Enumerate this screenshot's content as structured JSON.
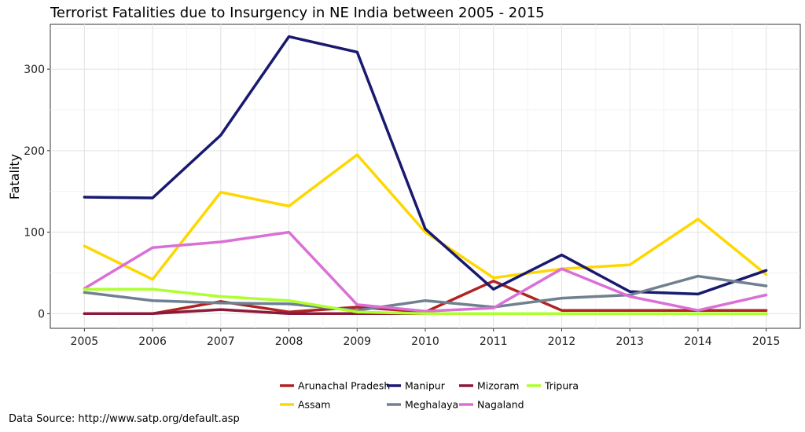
{
  "chart_data": {
    "type": "line",
    "title": "Terrorist Fatalities due to Insurgency in NE India between 2005 - 2015",
    "xlabel": "",
    "ylabel": "Fatality",
    "x": [
      2005,
      2006,
      2007,
      2008,
      2009,
      2010,
      2011,
      2012,
      2013,
      2014,
      2015
    ],
    "xlim": [
      2004.5,
      2015.5
    ],
    "ylim": [
      -18,
      355
    ],
    "y_ticks": [
      0,
      100,
      200,
      300
    ],
    "grid": true,
    "legend_position": "bottom",
    "series": [
      {
        "name": "Arunachal Pradesh",
        "color": "#b22222",
        "values": [
          0,
          0,
          15,
          2,
          8,
          2,
          40,
          4,
          4,
          4,
          4
        ]
      },
      {
        "name": "Assam",
        "color": "#ffd700",
        "values": [
          83,
          42,
          149,
          132,
          195,
          100,
          44,
          55,
          60,
          116,
          48
        ]
      },
      {
        "name": "Manipur",
        "color": "#191970",
        "values": [
          143,
          142,
          219,
          340,
          321,
          104,
          30,
          72,
          27,
          24,
          53
        ]
      },
      {
        "name": "Meghalaya",
        "color": "#708090",
        "values": [
          26,
          16,
          13,
          12,
          4,
          16,
          8,
          19,
          23,
          46,
          34
        ]
      },
      {
        "name": "Mizoram",
        "color": "#8b1a3a",
        "values": [
          0,
          0,
          5,
          0,
          0,
          0,
          0,
          0,
          0,
          0,
          0
        ]
      },
      {
        "name": "Nagaland",
        "color": "#da70d6",
        "values": [
          31,
          81,
          88,
          100,
          11,
          3,
          7,
          55,
          21,
          4,
          23
        ]
      },
      {
        "name": "Tripura",
        "color": "#adff2f",
        "values": [
          30,
          30,
          21,
          16,
          2,
          0,
          0,
          0,
          0,
          0,
          0
        ]
      }
    ]
  },
  "footer": {
    "source": "Data Source: http://www.satp.org/default.asp"
  }
}
